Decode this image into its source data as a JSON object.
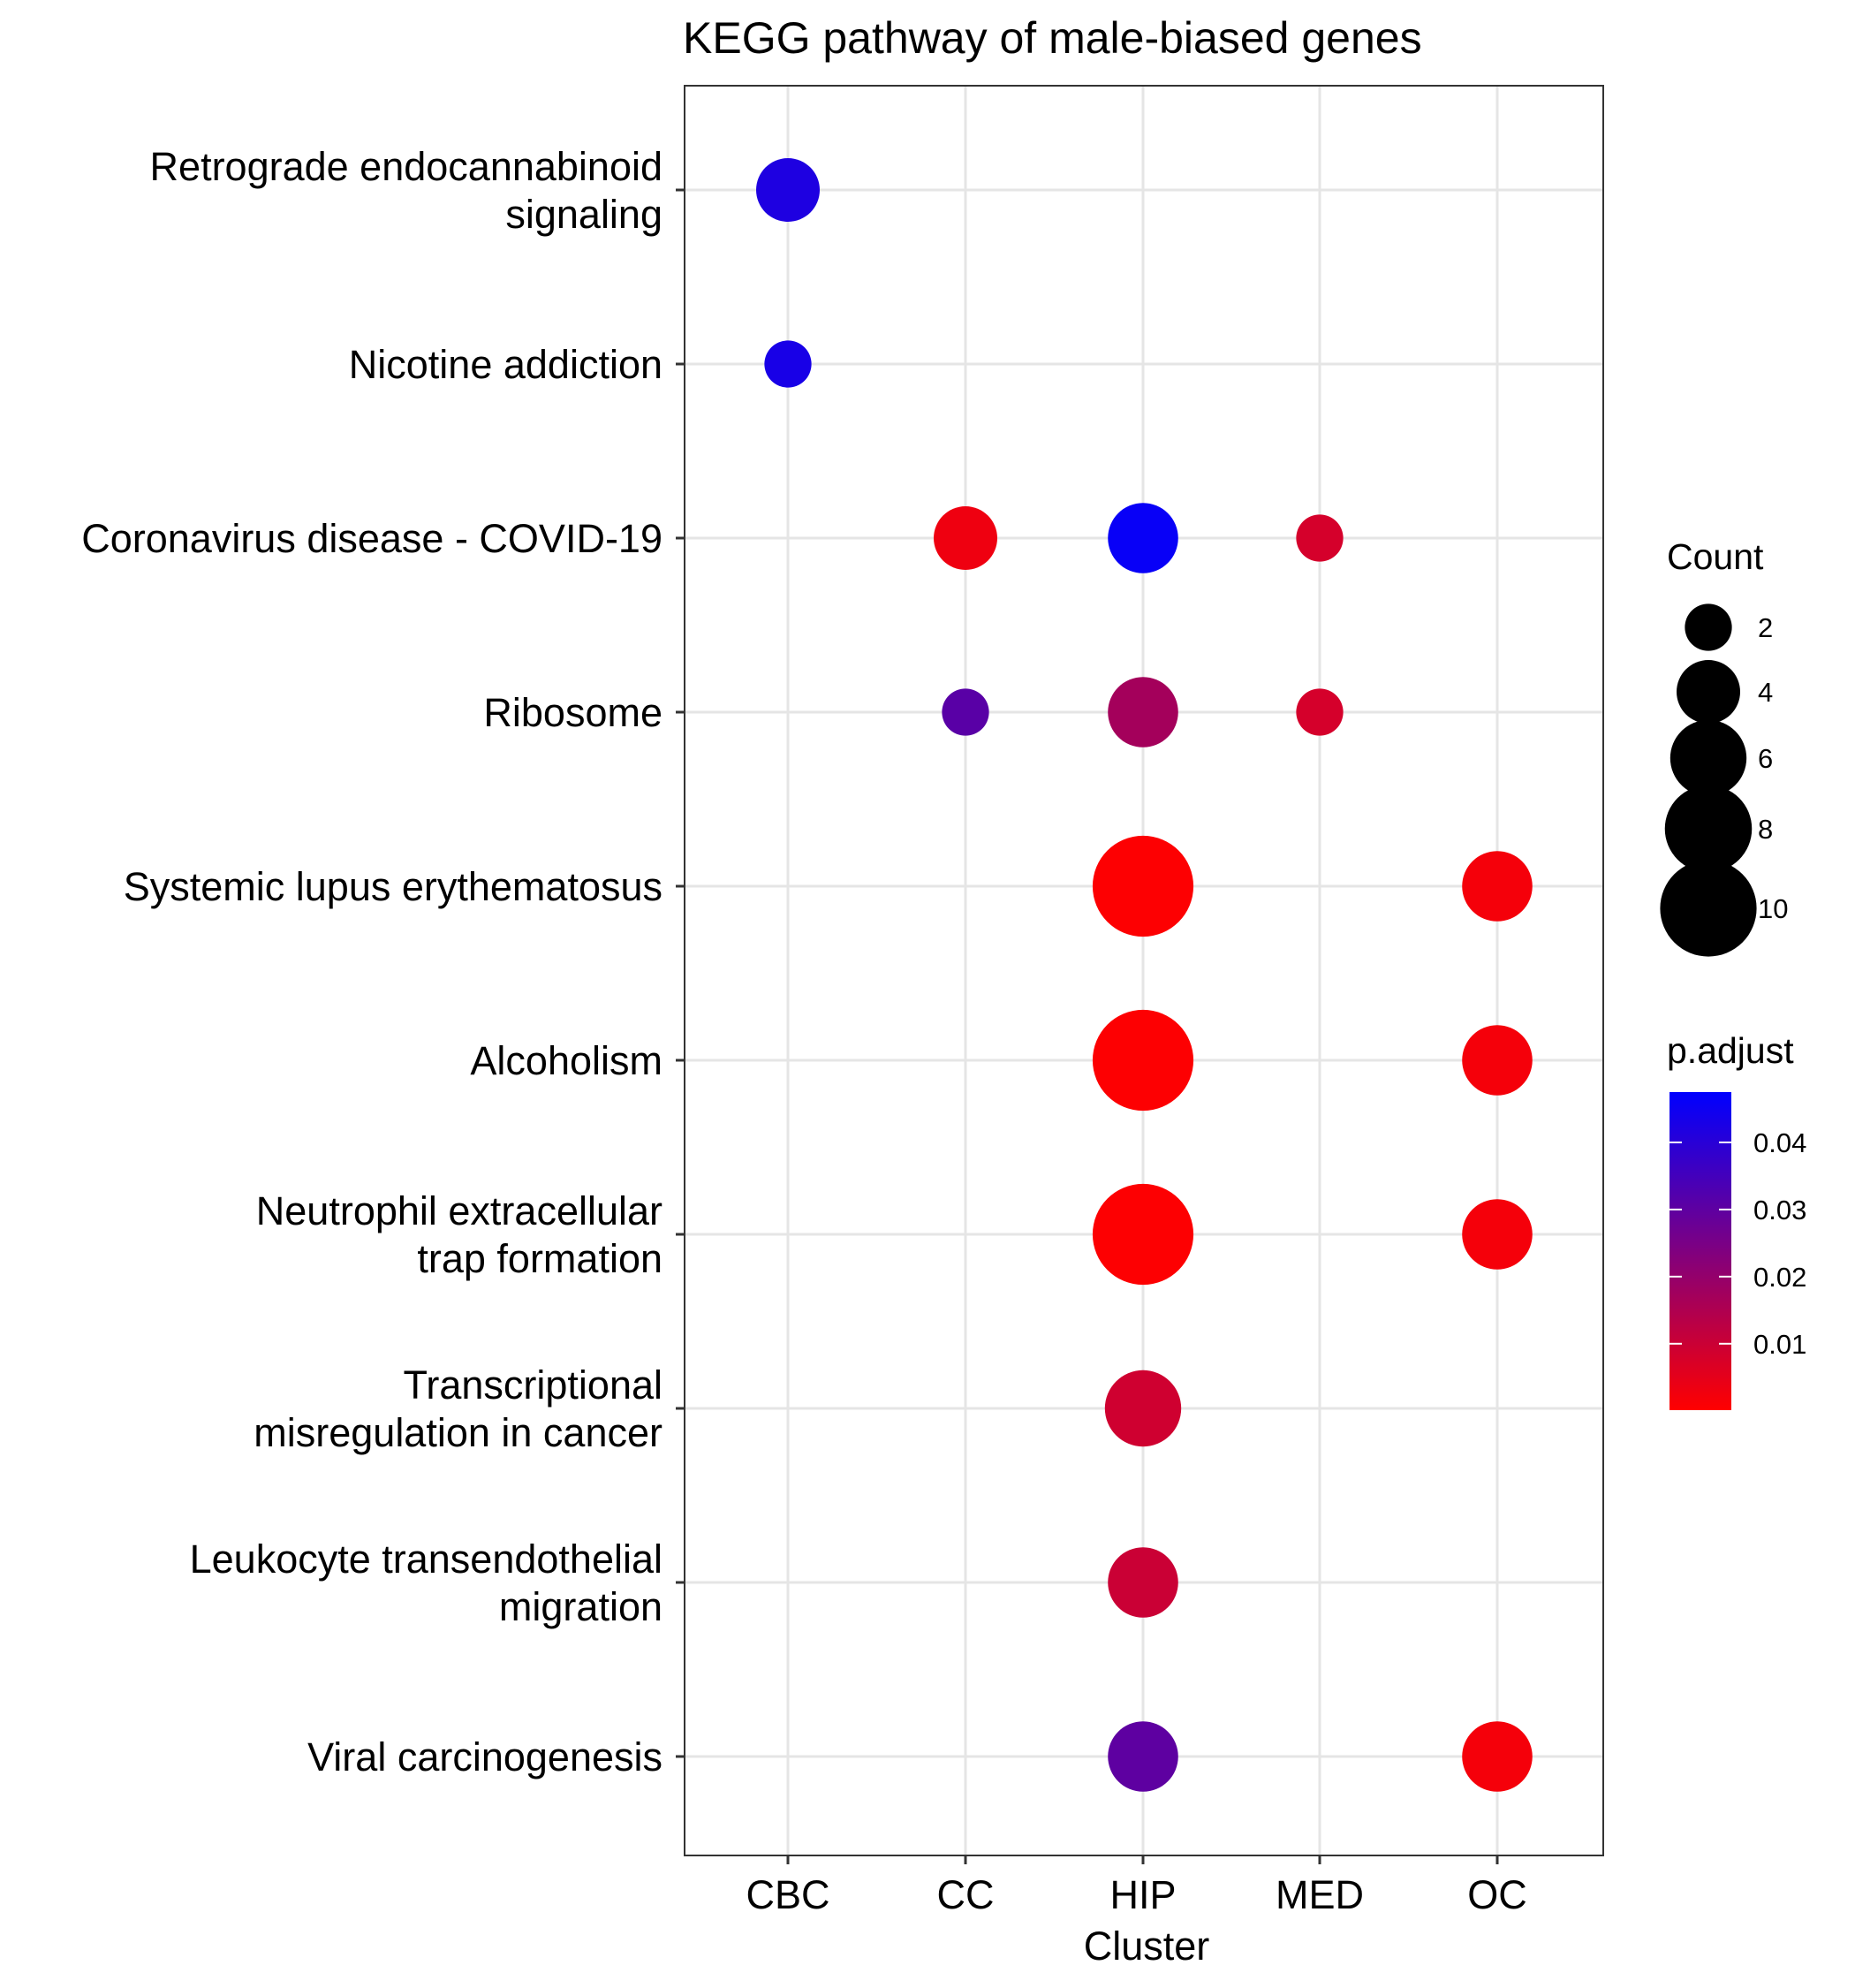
{
  "chart_data": {
    "type": "scatter",
    "title": "KEGG pathway of male-biased genes",
    "xlabel": "Cluster",
    "ylabel": "",
    "x_categories": [
      "CBC",
      "CC",
      "HIP",
      "MED",
      "OC"
    ],
    "y_categories": [
      [
        "Retrograde endocannabinoid",
        "signaling"
      ],
      [
        "Nicotine addiction"
      ],
      [
        "Coronavirus disease - COVID-19"
      ],
      [
        "Ribosome"
      ],
      [
        "Systemic lupus erythematosus"
      ],
      [
        "Alcoholism"
      ],
      [
        "Neutrophil extracellular",
        "trap formation"
      ],
      [
        "Transcriptional",
        "misregulation in cancer"
      ],
      [
        "Leukocyte transendothelial",
        "migration"
      ],
      [
        "Viral carcinogenesis"
      ]
    ],
    "points": [
      {
        "x": "CBC",
        "y": 0,
        "count": 4,
        "p_adjust": 0.042
      },
      {
        "x": "CBC",
        "y": 1,
        "count": 2,
        "p_adjust": 0.043
      },
      {
        "x": "CC",
        "y": 2,
        "count": 4,
        "p_adjust": 0.003
      },
      {
        "x": "HIP",
        "y": 2,
        "count": 5,
        "p_adjust": 0.046
      },
      {
        "x": "MED",
        "y": 2,
        "count": 2,
        "p_adjust": 0.008
      },
      {
        "x": "CC",
        "y": 3,
        "count": 2,
        "p_adjust": 0.031
      },
      {
        "x": "HIP",
        "y": 3,
        "count": 5,
        "p_adjust": 0.017
      },
      {
        "x": "MED",
        "y": 3,
        "count": 2,
        "p_adjust": 0.008
      },
      {
        "x": "HIP",
        "y": 4,
        "count": 11,
        "p_adjust": 0.0005
      },
      {
        "x": "OC",
        "y": 4,
        "count": 5,
        "p_adjust": 0.002
      },
      {
        "x": "HIP",
        "y": 5,
        "count": 11,
        "p_adjust": 0.0005
      },
      {
        "x": "OC",
        "y": 5,
        "count": 5,
        "p_adjust": 0.002
      },
      {
        "x": "HIP",
        "y": 6,
        "count": 11,
        "p_adjust": 0.0005
      },
      {
        "x": "OC",
        "y": 6,
        "count": 5,
        "p_adjust": 0.002
      },
      {
        "x": "HIP",
        "y": 7,
        "count": 6,
        "p_adjust": 0.009
      },
      {
        "x": "HIP",
        "y": 8,
        "count": 5,
        "p_adjust": 0.01
      },
      {
        "x": "HIP",
        "y": 9,
        "count": 5,
        "p_adjust": 0.03
      },
      {
        "x": "OC",
        "y": 9,
        "count": 5,
        "p_adjust": 0.002
      }
    ],
    "size_legend": {
      "title": "Count",
      "values": [
        2,
        4,
        6,
        8,
        10
      ],
      "labels": [
        "2",
        "4",
        "6",
        "8",
        "10"
      ]
    },
    "color_legend": {
      "title": "p.adjust",
      "range": [
        0.0001,
        0.0475
      ],
      "low_color": "#FF0000",
      "high_color": "#0000FF",
      "ticks": [
        0.04,
        0.03,
        0.02,
        0.01
      ],
      "tick_labels": [
        "0.04",
        "0.03",
        "0.02",
        "0.01"
      ]
    },
    "grid": true,
    "legend_position": "right"
  }
}
